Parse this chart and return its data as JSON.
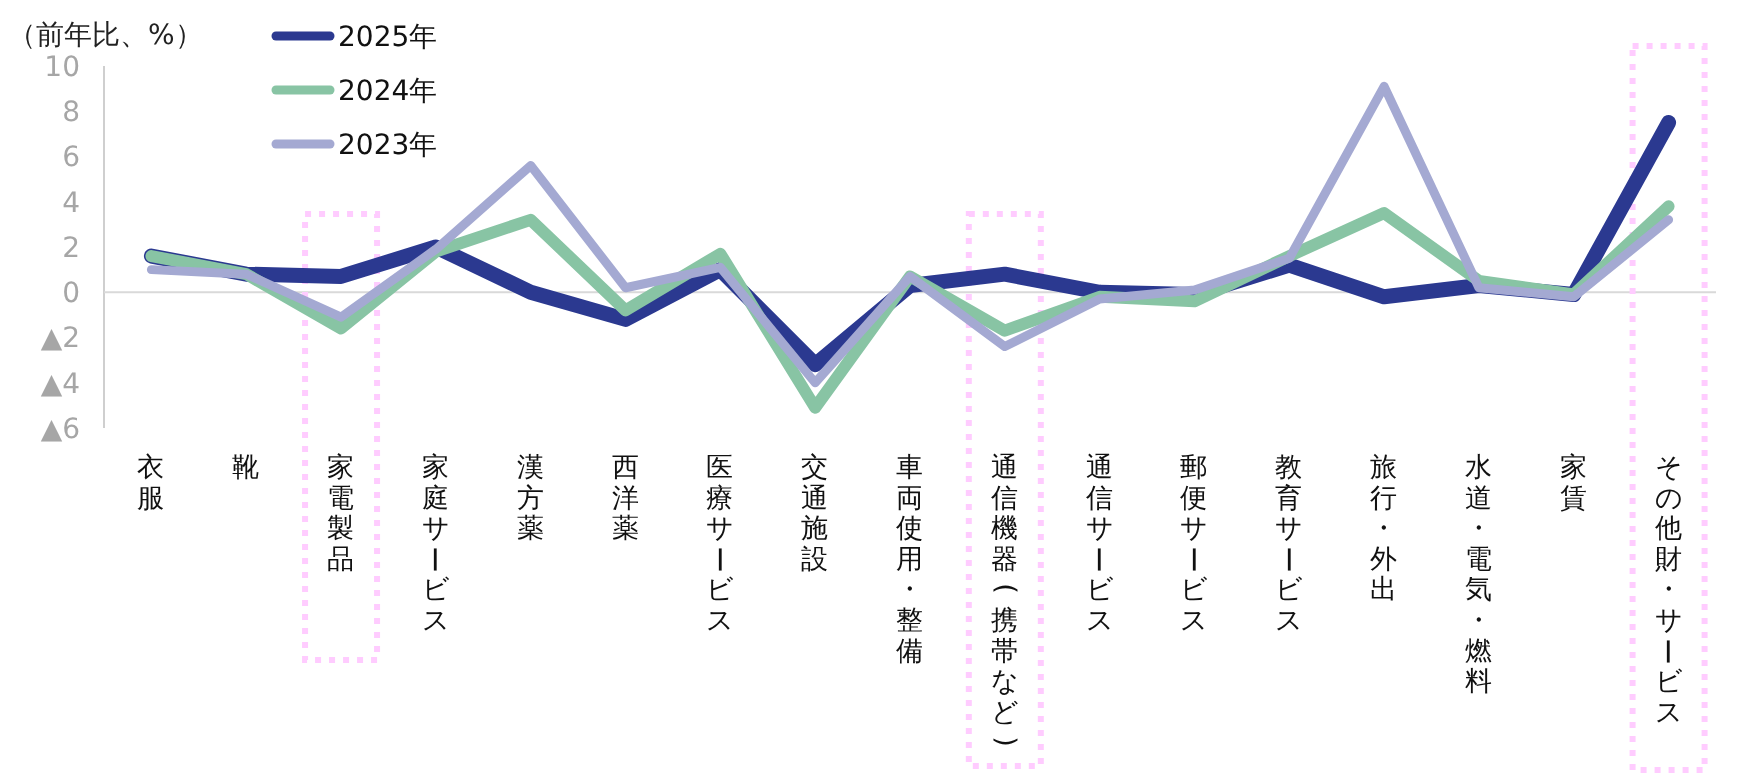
{
  "chart_data": {
    "type": "line",
    "ylabel": "（前年比、%）",
    "categories": [
      "衣服",
      "靴",
      "家電製品",
      "家庭サービス",
      "漢方薬",
      "西洋薬",
      "医療サービス",
      "交通施設",
      "車両使用・整備",
      "通信機器(携帯など)",
      "通信サービス",
      "郵便サービス",
      "教育サービス",
      "旅行・外出",
      "水道・電気・燃料",
      "家賃",
      "その他財・サービス"
    ],
    "series": [
      {
        "name": "2025年",
        "color": "#2b3990",
        "values": [
          1.6,
          0.8,
          0.7,
          2.0,
          0.0,
          -1.2,
          1.0,
          -3.2,
          0.3,
          0.8,
          0.0,
          -0.1,
          1.2,
          -0.2,
          0.3,
          -0.1,
          7.5
        ]
      },
      {
        "name": "2024年",
        "color": "#88c4a4",
        "values": [
          1.6,
          0.8,
          -1.6,
          1.8,
          3.2,
          -0.8,
          1.7,
          -5.1,
          0.7,
          -1.7,
          -0.2,
          -0.4,
          1.6,
          3.5,
          0.5,
          -0.1,
          3.8
        ]
      },
      {
        "name": "2023年",
        "color": "#a4a9d2",
        "values": [
          1.0,
          0.8,
          -1.1,
          1.9,
          5.6,
          0.2,
          1.1,
          -4.0,
          0.7,
          -2.4,
          -0.3,
          0.1,
          1.5,
          9.1,
          0.2,
          -0.2,
          3.2
        ]
      }
    ],
    "ylim": [
      -6,
      10
    ],
    "yticks": [
      {
        "value": -6,
        "label": "▲6"
      },
      {
        "value": -4,
        "label": "▲4"
      },
      {
        "value": -2,
        "label": "▲2"
      },
      0,
      2,
      4,
      6,
      8,
      10
    ],
    "legend": "top left",
    "marker": "none",
    "line_style": "solid"
  }
}
